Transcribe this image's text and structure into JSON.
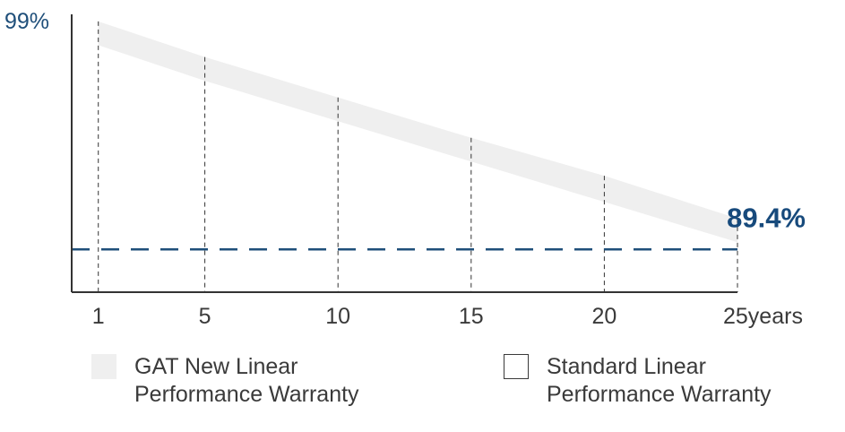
{
  "chart_data": {
    "type": "area",
    "x": [
      1,
      5,
      10,
      15,
      20,
      25
    ],
    "x_tick_labels": [
      "1",
      "5",
      "10",
      "15",
      "20",
      "25years"
    ],
    "xlim": [
      0,
      25
    ],
    "ylim": [
      87.6,
      99.6
    ],
    "y_tick_labels": [
      {
        "value": 99,
        "label": "99%"
      }
    ],
    "series": [
      {
        "name": "GAT New Linear Performance Warranty",
        "style": "band",
        "color": "#efefef",
        "upper": [
          99,
          97.5,
          95.8,
          94.1,
          92.5,
          90.7
        ],
        "lower": [
          98.0,
          96.5,
          94.8,
          93.1,
          91.4,
          89.7
        ]
      },
      {
        "name": "Standard Linear Performance Warranty",
        "style": "dashed-line",
        "color": "#1f4f7a",
        "values": [
          89.4,
          89.4,
          89.4,
          89.4,
          89.4,
          89.4
        ]
      }
    ],
    "annotations": [
      {
        "text": "89.4%",
        "x": 25,
        "y": 89.4
      }
    ],
    "grid": "dashed vertical lines at x ticks",
    "legend_position": "bottom"
  },
  "legend": [
    {
      "label": "GAT New Linear\nPerformance Warranty",
      "swatch_fill": "#efefef",
      "swatch_border": "none"
    },
    {
      "label": "Standard Linear\nPerformance Warranty",
      "swatch_fill": "#ffffff",
      "swatch_border": "#3a3a3a"
    }
  ]
}
